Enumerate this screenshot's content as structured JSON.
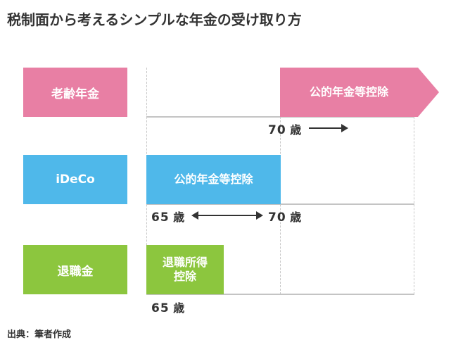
{
  "title": "税制面から考えるシンプルな年金の受け取り方",
  "colors": {
    "pink": "#e87fa4",
    "blue": "#4fb8ea",
    "green": "#8cc63e",
    "grid": "#c4c4c4"
  },
  "rows": [
    {
      "label": "老齢年金",
      "bar_label": "公的年金等控除",
      "ages": [
        {
          "num": "70",
          "unit": "歳"
        }
      ]
    },
    {
      "label": "iDeCo",
      "bar_label": "公的年金等控除",
      "ages": [
        {
          "num": "65",
          "unit": "歳"
        },
        {
          "num": "70",
          "unit": "歳"
        }
      ]
    },
    {
      "label": "退職金",
      "bar_label_line1": "退職所得",
      "bar_label_line2": "控除",
      "ages": [
        {
          "num": "65",
          "unit": "歳"
        }
      ]
    }
  ],
  "source": "出典：筆者作成"
}
